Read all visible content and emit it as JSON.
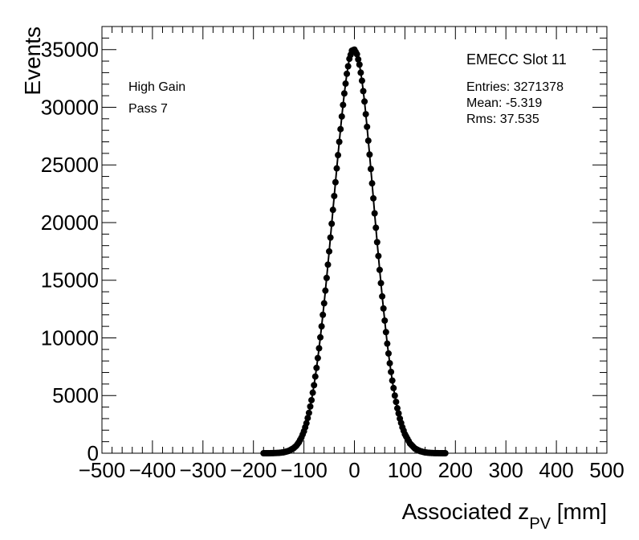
{
  "chart_data": {
    "type": "scatter",
    "title": "EMECC Slot 11",
    "xlabel_main": "Associated z",
    "xlabel_sub": "PV",
    "xlabel_unit": " [mm]",
    "ylabel": "Events",
    "xlim": [
      -500,
      500
    ],
    "ylim": [
      0,
      37000
    ],
    "x_ticks": [
      -500,
      -400,
      -300,
      -200,
      -100,
      0,
      100,
      200,
      300,
      400,
      500
    ],
    "y_ticks": [
      0,
      5000,
      10000,
      15000,
      20000,
      25000,
      30000,
      35000
    ],
    "grid": false,
    "annotations_left": [
      "High Gain",
      "Pass 7"
    ],
    "stats": [
      "Entries: 3271378",
      "Mean: -5.319",
      "Rms: 37.535"
    ],
    "marker_color": "#000000",
    "series": [
      {
        "x": [
          -180,
          -170,
          -160,
          -150,
          -140,
          -130,
          -120,
          -115,
          -110,
          -105,
          -100,
          -95,
          -90,
          -85,
          -80,
          -75,
          -70,
          -65,
          -60,
          -55,
          -50,
          -45,
          -40,
          -35,
          -30,
          -25,
          -20,
          -15,
          -10,
          -5,
          0,
          5,
          10,
          15,
          20,
          25,
          30,
          35,
          40,
          45,
          50,
          55,
          60,
          65,
          70,
          75,
          80,
          85,
          90,
          95,
          100,
          110,
          120,
          130,
          140,
          150,
          160,
          170,
          180
        ],
        "y": [
          0,
          0,
          10,
          30,
          80,
          200,
          450,
          650,
          950,
          1350,
          1900,
          2600,
          3500,
          4600,
          5900,
          7400,
          9100,
          11000,
          13000,
          15200,
          17500,
          19900,
          22300,
          24700,
          27000,
          29200,
          31200,
          32900,
          34200,
          34900,
          35000,
          34600,
          33700,
          32300,
          30500,
          28300,
          25900,
          23400,
          20800,
          18300,
          15900,
          13600,
          11500,
          9500,
          7800,
          6300,
          5000,
          3900,
          3000,
          2250,
          1650,
          850,
          400,
          180,
          70,
          25,
          8,
          2,
          0
        ]
      }
    ]
  }
}
